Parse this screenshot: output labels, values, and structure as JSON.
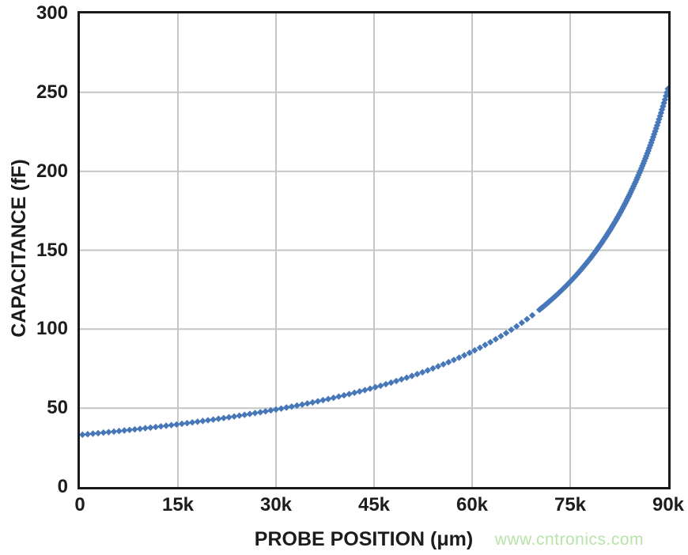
{
  "watermark": {
    "text": "www.cntronics.com",
    "color": "#b9e3ab"
  },
  "chart_data": {
    "type": "scatter",
    "title": "",
    "xlabel": "PROBE POSITION (μm)",
    "ylabel": "CAPACITANCE (fF)",
    "xlim": [
      0,
      90000
    ],
    "ylim": [
      0,
      300
    ],
    "x_tick_values": [
      0,
      15000,
      30000,
      45000,
      60000,
      75000,
      90000
    ],
    "x_tick_labels": [
      "0",
      "15k",
      "30k",
      "45k",
      "60k",
      "75k",
      "90k"
    ],
    "y_tick_values": [
      0,
      50,
      100,
      150,
      200,
      250,
      300
    ],
    "y_tick_labels": [
      "0",
      "50",
      "100",
      "150",
      "200",
      "250",
      "300"
    ],
    "grid": true,
    "legend": "none",
    "grid_color": "#c6c6c6",
    "axis_color": "#1a1a1a",
    "text_color": "#1c1c1c",
    "marker": {
      "shape": "diamond",
      "size": 8.4,
      "color": "#4677b8"
    },
    "points": [
      [
        0,
        33.0
      ],
      [
        5000,
        35.0
      ],
      [
        10000,
        37.3
      ],
      [
        15000,
        39.7
      ],
      [
        20000,
        42.5
      ],
      [
        25000,
        45.6
      ],
      [
        30000,
        49.1
      ],
      [
        35000,
        53.1
      ],
      [
        40000,
        57.7
      ],
      [
        45000,
        63.0
      ],
      [
        50000,
        69.3
      ],
      [
        55000,
        76.7
      ],
      [
        60000,
        85.8
      ],
      [
        65000,
        97.0
      ],
      [
        70000,
        111.3
      ],
      [
        75000,
        130.1
      ],
      [
        80000,
        155.8
      ],
      [
        85000,
        193.3
      ],
      [
        90000,
        253.0
      ]
    ],
    "curve_model": {
      "formula": "C(x) = A / (d - x) + c   (C in fF, x in um)",
      "A": 4408600,
      "d": 106875,
      "c": -8.25
    },
    "render_sampling": [
      {
        "from": 400,
        "to": 69200,
        "step": 800
      },
      {
        "from": 70300,
        "to": 90000,
        "step": 150
      }
    ]
  }
}
